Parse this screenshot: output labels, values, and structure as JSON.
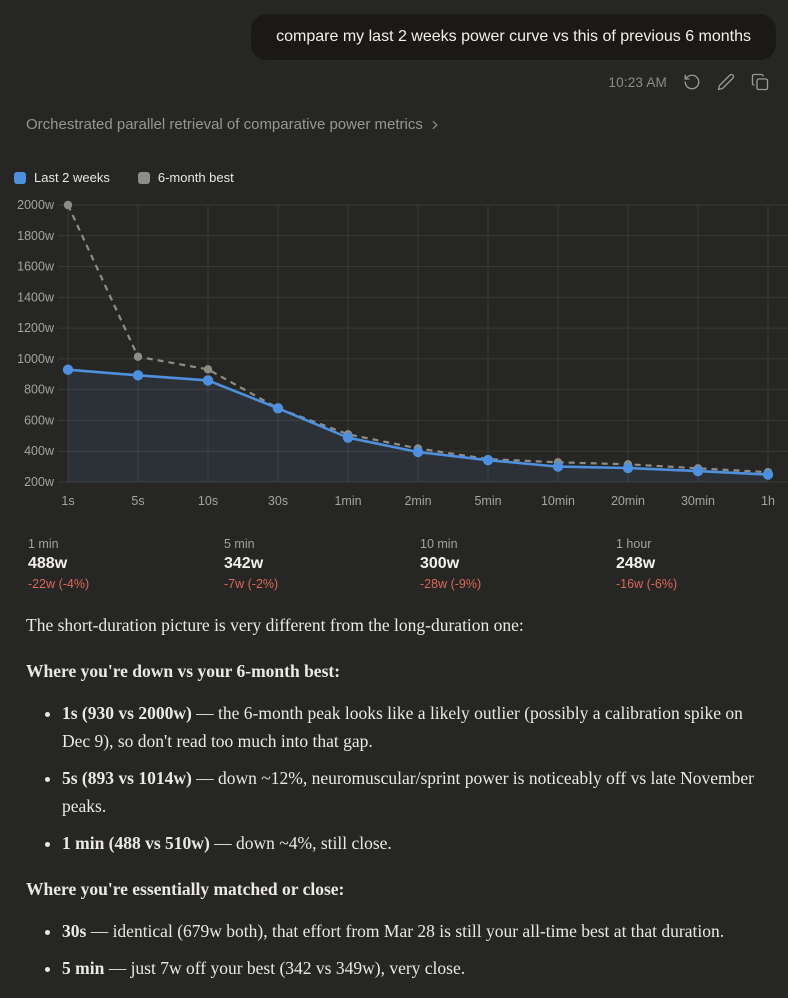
{
  "user_message": {
    "text": "compare my last 2 weeks power curve vs this of previous 6 months",
    "time": "10:23 AM"
  },
  "icons": {
    "retry": "circular-arrow",
    "edit": "pencil",
    "copy": "overlapping-squares",
    "chevron": "chevron-right"
  },
  "thinking": {
    "label": "Orchestrated parallel retrieval of comparative power metrics"
  },
  "chart_data": {
    "type": "line",
    "x": [
      "1s",
      "5s",
      "10s",
      "30s",
      "1min",
      "2min",
      "5min",
      "10min",
      "20min",
      "30min",
      "1h"
    ],
    "series": [
      {
        "name": "Last 2 weeks",
        "color": "#4e90dd",
        "style": "solid",
        "values": [
          930,
          893,
          860,
          679,
          488,
          395,
          342,
          300,
          291,
          271,
          248
        ]
      },
      {
        "name": "6-month best",
        "color": "#8e8c87",
        "style": "dashed",
        "values": [
          2000,
          1014,
          932,
          679,
          510,
          418,
          349,
          328,
          315,
          289,
          264
        ]
      }
    ],
    "yticks": [
      200,
      400,
      600,
      800,
      1000,
      1200,
      1400,
      1600,
      1800,
      2000
    ],
    "y_unit": "w",
    "ylim": [
      200,
      2000
    ],
    "grid": true,
    "legend_position": "top-left",
    "grid_color": "#393936",
    "axis_color": "#a5a39c",
    "area_fill": "rgba(98,150,225,0.10)"
  },
  "stats": [
    {
      "label": "1 min",
      "value": "488w",
      "delta": "-22w (-4%)"
    },
    {
      "label": "5 min",
      "value": "342w",
      "delta": "-7w (-2%)"
    },
    {
      "label": "10 min",
      "value": "300w",
      "delta": "-28w (-9%)"
    },
    {
      "label": "1 hour",
      "value": "248w",
      "delta": "-16w (-6%)"
    }
  ],
  "analysis": {
    "intro": "The short-duration picture is very different from the long-duration one:",
    "sections": [
      {
        "heading": "Where you're down vs your 6-month best:",
        "bullets": [
          {
            "bold": "1s (930 vs 2000w)",
            "rest": " — the 6-month peak looks like a likely outlier (possibly a calibration spike on Dec 9), so don't read too much into that gap."
          },
          {
            "bold": "5s (893 vs 1014w)",
            "rest": " — down ~12%, neuromuscular/sprint power is noticeably off vs late November peaks."
          },
          {
            "bold": "1 min (488 vs 510w)",
            "rest": " — down ~4%, still close."
          }
        ]
      },
      {
        "heading": "Where you're essentially matched or close:",
        "bullets": [
          {
            "bold": "30s",
            "rest": " — identical (679w both), that effort from Mar 28 is still your all-time best at that duration."
          },
          {
            "bold": "5 min",
            "rest": " — just 7w off your best (342 vs 349w), very close."
          }
        ]
      }
    ]
  },
  "colors": {
    "background": "#262624",
    "bubble": "#1a1915",
    "delta_red": "#dd6759",
    "blue_series": "#4e90dd",
    "gray_series": "#8e8c87"
  }
}
